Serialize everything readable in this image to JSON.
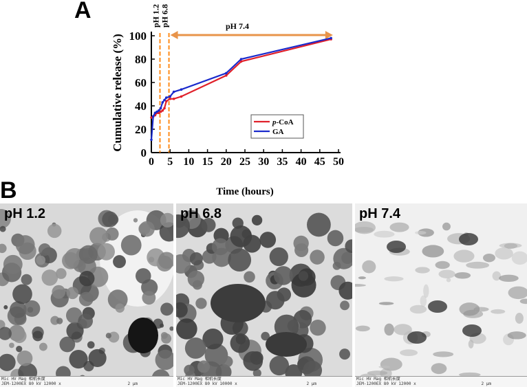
{
  "panel_labels": {
    "a": "A",
    "b": "B"
  },
  "chart_data": {
    "type": "line",
    "xlabel": "Time (hours)",
    "ylabel": "Cumulative release (%)",
    "xlim": [
      0,
      50
    ],
    "ylim": [
      0,
      100
    ],
    "xticks": [
      0,
      5,
      10,
      15,
      20,
      25,
      30,
      35,
      40,
      45,
      50
    ],
    "yticks": [
      0,
      20,
      40,
      60,
      80,
      100
    ],
    "grid": false,
    "legend_position": "center-right",
    "phase_markers": [
      {
        "label": "pH 1.2",
        "x": 2.3,
        "color": "#ff8c1a"
      },
      {
        "label": "pH 6.8",
        "x": 4.7,
        "color": "#ff8c1a"
      }
    ],
    "phase_arrow": {
      "label": "pH 7.4",
      "x_start": 4.7,
      "x_end": 48.5,
      "color": "#e8944a"
    },
    "series": [
      {
        "name": "p-CoA",
        "name_prefix": "p",
        "name_suffix": "-CoA",
        "color": "#e0202a",
        "x": [
          0,
          0.5,
          1,
          1.5,
          2,
          2.5,
          3,
          3.5,
          4,
          5,
          6,
          8,
          20,
          24,
          48
        ],
        "y": [
          30,
          31,
          32,
          34,
          34,
          35,
          36,
          38,
          44,
          46,
          46,
          48,
          66,
          78,
          97
        ]
      },
      {
        "name": "GA",
        "color": "#1a2acc",
        "x": [
          0,
          0.5,
          1,
          1.5,
          2,
          2.5,
          3,
          3.5,
          4,
          5,
          6,
          8,
          20,
          24,
          48
        ],
        "y": [
          11,
          31,
          34,
          35,
          36,
          38,
          43,
          45,
          47,
          48,
          52,
          54,
          68,
          80,
          98
        ]
      }
    ]
  },
  "micrographs": [
    {
      "label": "pH 1.2",
      "footer_line1": "Mic    HV    Mag   相机长度",
      "footer_line2": "JEM-1200EX 80  kV 12000  x",
      "scale": "2 μm"
    },
    {
      "label": "pH 6.8",
      "footer_line1": "Mic    HV    Mag   相机长度",
      "footer_line2": "JEM-1200EX 80  kV 10000  x",
      "scale": "2 μm"
    },
    {
      "label": "pH 7.4",
      "footer_line1": "Mic    HV    Mag   相机长度",
      "footer_line2": "JEM-1200EX 80  kV 12000  x",
      "scale": "2 μm"
    }
  ]
}
